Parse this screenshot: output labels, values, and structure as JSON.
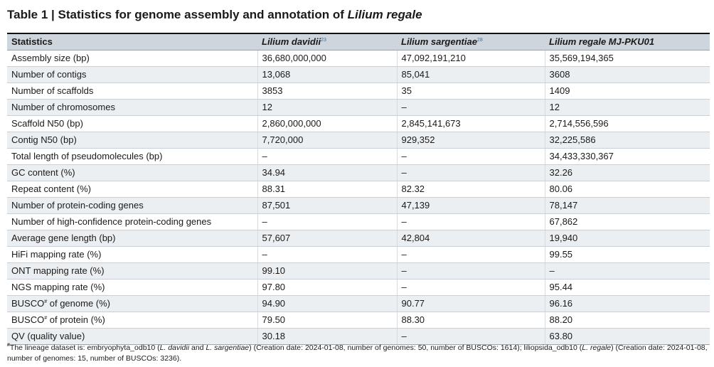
{
  "title": {
    "prefix": "Table 1 | Statistics for genome assembly and annotation of ",
    "species": "Lilium regale"
  },
  "header": {
    "stat": "Statistics",
    "col1": "Lilium davidii",
    "col1_ref": "23",
    "col2": "Lilium sargentiae",
    "col2_ref": "28",
    "col3": "Lilium regale MJ-PKU01"
  },
  "rows": [
    {
      "label": "Assembly size (bp)",
      "v1": "36,680,000,000",
      "v2": "47,092,191,210",
      "v3": "35,569,194,365"
    },
    {
      "label": "Number of contigs",
      "v1": "13,068",
      "v2": "85,041",
      "v3": "3608"
    },
    {
      "label": "Number of scaffolds",
      "v1": "3853",
      "v2": "35",
      "v3": "1409"
    },
    {
      "label": "Number of chromosomes",
      "v1": "12",
      "v2": "–",
      "v3": "12"
    },
    {
      "label": "Scaffold N50 (bp)",
      "v1": "2,860,000,000",
      "v2": "2,845,141,673",
      "v3": "2,714,556,596"
    },
    {
      "label": "Contig N50 (bp)",
      "v1": "7,720,000",
      "v2": "929,352",
      "v3": "32,225,586"
    },
    {
      "label": "Total length of pseudomolecules (bp)",
      "v1": "–",
      "v2": "–",
      "v3": "34,433,330,367"
    },
    {
      "label": "GC content (%)",
      "v1": "34.94",
      "v2": "–",
      "v3": "32.26"
    },
    {
      "label": "Repeat content (%)",
      "v1": "88.31",
      "v2": "82.32",
      "v3": "80.06"
    },
    {
      "label": "Number of protein-coding genes",
      "v1": "87,501",
      "v2": "47,139",
      "v3": "78,147"
    },
    {
      "label": "Number of high-confidence protein-coding genes",
      "v1": "–",
      "v2": "–",
      "v3": "67,862"
    },
    {
      "label": "Average gene length (bp)",
      "v1": "57,607",
      "v2": "42,804",
      "v3": "19,940"
    },
    {
      "label": "HiFi mapping rate (%)",
      "v1": "–",
      "v2": "–",
      "v3": "99.55"
    },
    {
      "label": "ONT mapping rate (%)",
      "v1": "99.10",
      "v2": "–",
      "v3": "–"
    },
    {
      "label": "NGS mapping rate (%)",
      "v1": "97.80",
      "v2": "–",
      "v3": "95.44"
    },
    {
      "label": "BUSCO",
      "label_sup": "#",
      "label_rest": " of genome (%)",
      "v1": "94.90",
      "v2": "90.77",
      "v3": "96.16"
    },
    {
      "label": "BUSCO",
      "label_sup": "#",
      "label_rest": " of protein (%)",
      "v1": "79.50",
      "v2": "88.30",
      "v3": "88.20"
    },
    {
      "label": "QV (quality value)",
      "v1": "30.18",
      "v2": "–",
      "v3": "63.80"
    }
  ],
  "footnote": {
    "mark": "#",
    "t1": "The lineage dataset is: embryophyta_odb10 (",
    "i1": "L. davidii",
    "t2": " and ",
    "i2": "L. sargentiae",
    "t3": ") (Creation date: 2024-01-08, number of genomes: 50, number of BUSCOs: 1614); liliopsida_odb10 (",
    "i3": "L. regale",
    "t4": ") (Creation date: 2024-01-08, number of genomes: 15, number of BUSCOs: 3236)."
  }
}
